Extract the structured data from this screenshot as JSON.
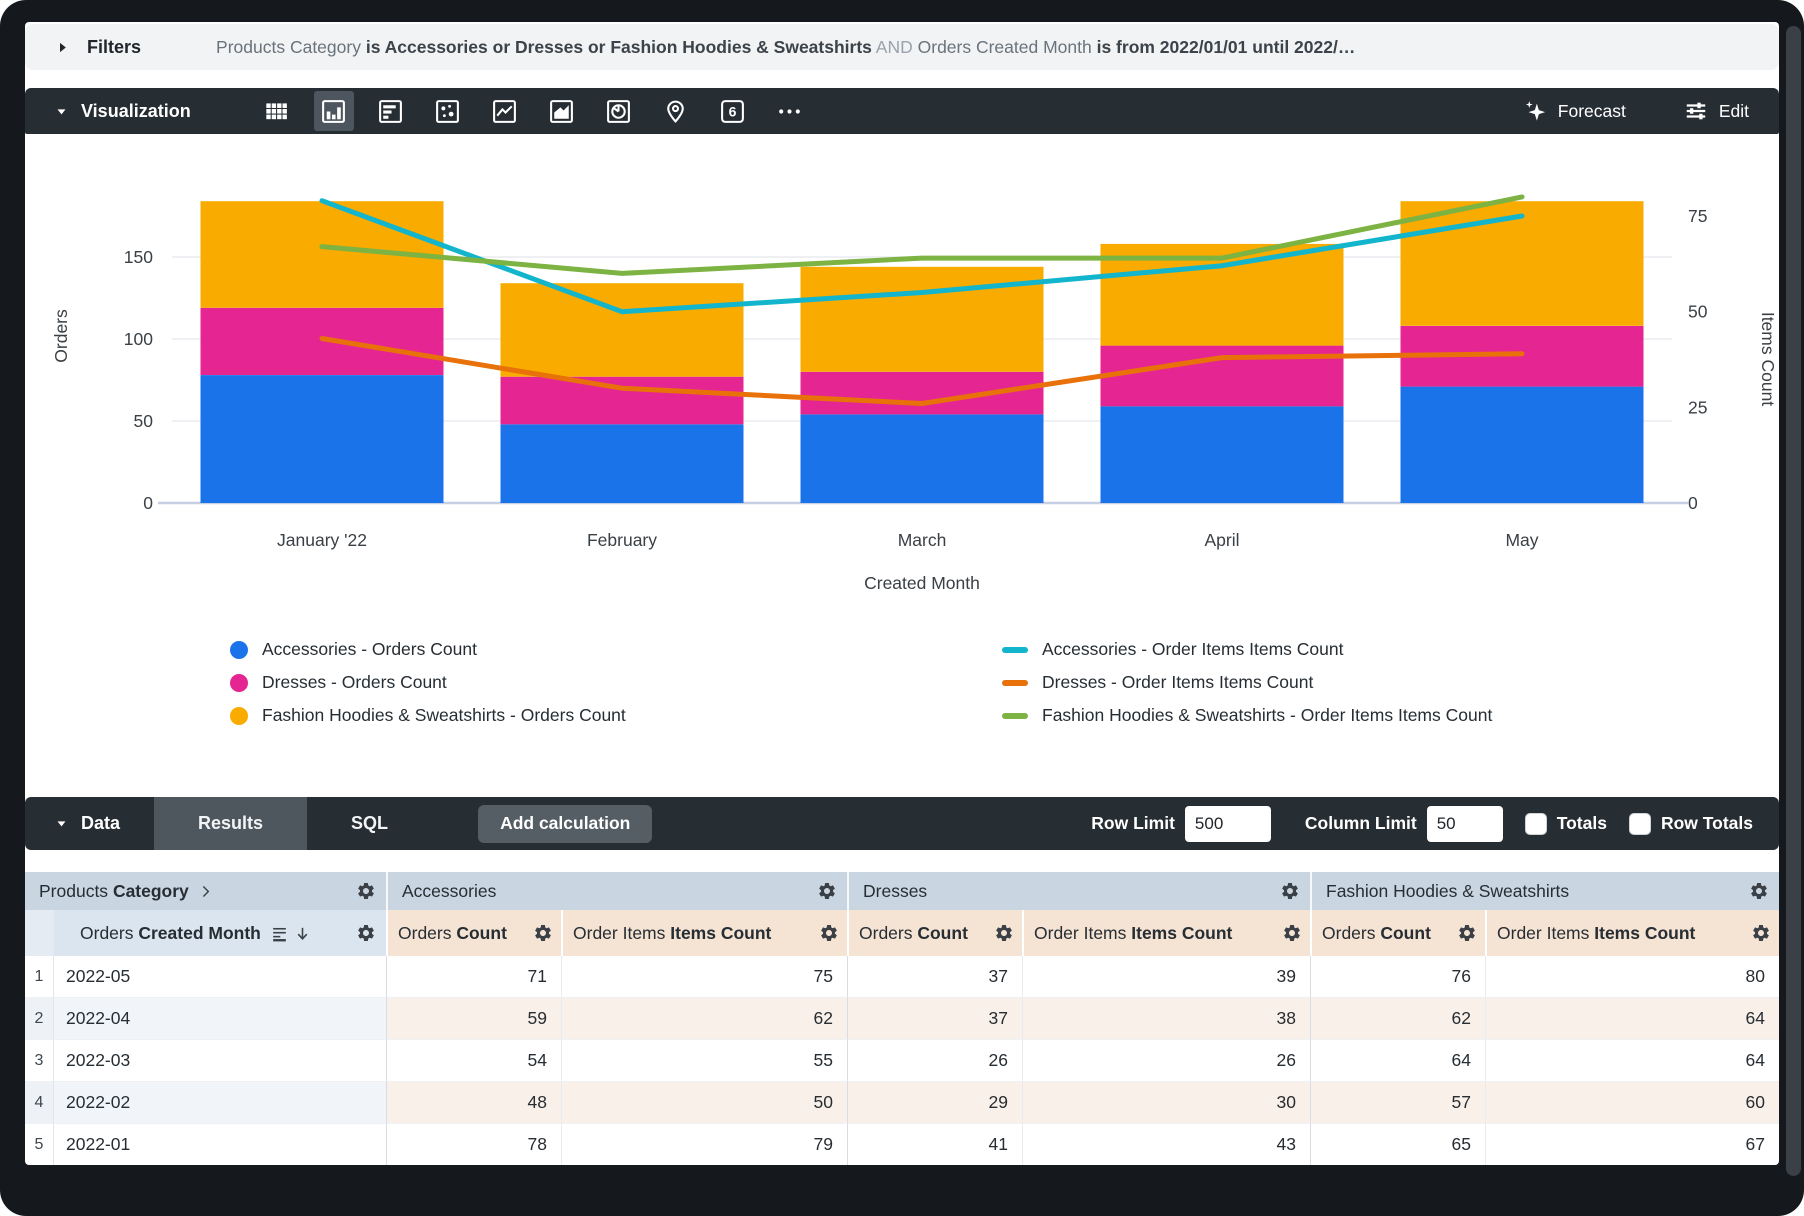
{
  "filters": {
    "label": "Filters",
    "parts": [
      {
        "text": "Products Category ",
        "style": "dim"
      },
      {
        "text": "is Accessories or Dresses or Fashion Hoodies & Sweatshirts",
        "style": "strong"
      },
      {
        "text": " AND ",
        "style": "faint"
      },
      {
        "text": "Orders Created Month ",
        "style": "dim"
      },
      {
        "text": "is from 2022/01/01 until 2022/…",
        "style": "strong"
      }
    ]
  },
  "viz": {
    "title": "Visualization",
    "icons": [
      {
        "name": "table",
        "selected": false
      },
      {
        "name": "column",
        "selected": true
      },
      {
        "name": "bar",
        "selected": false
      },
      {
        "name": "scatter",
        "selected": false
      },
      {
        "name": "line",
        "selected": false
      },
      {
        "name": "area",
        "selected": false
      },
      {
        "name": "pie",
        "selected": false
      },
      {
        "name": "map",
        "selected": false
      },
      {
        "name": "single-value",
        "selected": false,
        "glyph": "6"
      },
      {
        "name": "more",
        "selected": false
      }
    ],
    "forecast_label": "Forecast",
    "edit_label": "Edit"
  },
  "chart_data": {
    "type": "combo",
    "categories": [
      "January '22",
      "February",
      "March",
      "April",
      "May"
    ],
    "x_axis_label": "Created Month",
    "left_axis": {
      "label": "Orders",
      "ticks": [
        0,
        50,
        100,
        150
      ],
      "max": 203
    },
    "right_axis": {
      "label": "Items Count",
      "ticks": [
        0,
        25,
        50,
        75
      ],
      "max": 87
    },
    "bar_series": [
      {
        "name": "Accessories - Orders Count",
        "color": "#1a73e8",
        "values": [
          78,
          48,
          54,
          59,
          71
        ]
      },
      {
        "name": "Dresses - Orders Count",
        "color": "#e52592",
        "values": [
          41,
          29,
          26,
          37,
          37
        ]
      },
      {
        "name": "Fashion Hoodies & Sweatshirts - Orders Count",
        "color": "#f9ab00",
        "values": [
          65,
          57,
          64,
          62,
          76
        ]
      }
    ],
    "line_series": [
      {
        "name": "Accessories - Order Items Items Count",
        "color": "#12b5cb",
        "values": [
          79,
          50,
          55,
          62,
          75
        ]
      },
      {
        "name": "Dresses - Order Items Items Count",
        "color": "#e8710a",
        "values": [
          43,
          30,
          26,
          38,
          39
        ]
      },
      {
        "name": "Fashion Hoodies & Sweatshirts - Order Items Items Count",
        "color": "#7cb342",
        "values": [
          67,
          60,
          64,
          64,
          80
        ]
      }
    ]
  },
  "data_panel": {
    "title": "Data",
    "tabs": [
      {
        "label": "Results",
        "active": true
      },
      {
        "label": "SQL",
        "active": false
      }
    ],
    "add_calculation_label": "Add calculation",
    "row_limit_label": "Row Limit",
    "row_limit_value": "500",
    "column_limit_label": "Column Limit",
    "column_limit_value": "50",
    "totals_label": "Totals",
    "row_totals_label": "Row Totals",
    "totals_checked": false,
    "row_totals_checked": false
  },
  "table": {
    "groups": [
      {
        "regular": "Products ",
        "bold": "Category",
        "chevron": true
      },
      {
        "regular": "Accessories",
        "bold": "",
        "chevron": false
      },
      {
        "regular": "Dresses",
        "bold": "",
        "chevron": false
      },
      {
        "regular": "Fashion Hoodies & Sweatshirts",
        "bold": "",
        "chevron": false
      }
    ],
    "dimension_header": {
      "regular": "Orders ",
      "bold": "Created Month"
    },
    "measure_headers": [
      {
        "regular": "Orders ",
        "bold": "Count"
      },
      {
        "regular": "Order Items ",
        "bold": "Items Count"
      },
      {
        "regular": "Orders ",
        "bold": "Count"
      },
      {
        "regular": "Order Items ",
        "bold": "Items Count"
      },
      {
        "regular": "Orders ",
        "bold": "Count"
      },
      {
        "regular": "Order Items ",
        "bold": "Items Count"
      }
    ],
    "rows": [
      {
        "num": "1",
        "dimension": "2022-05",
        "values": [
          "71",
          "75",
          "37",
          "39",
          "76",
          "80"
        ]
      },
      {
        "num": "2",
        "dimension": "2022-04",
        "values": [
          "59",
          "62",
          "37",
          "38",
          "62",
          "64"
        ]
      },
      {
        "num": "3",
        "dimension": "2022-03",
        "values": [
          "54",
          "55",
          "26",
          "26",
          "64",
          "64"
        ]
      },
      {
        "num": "4",
        "dimension": "2022-02",
        "values": [
          "48",
          "50",
          "29",
          "30",
          "57",
          "60"
        ]
      },
      {
        "num": "5",
        "dimension": "2022-01",
        "values": [
          "78",
          "79",
          "41",
          "43",
          "65",
          "67"
        ]
      }
    ]
  }
}
